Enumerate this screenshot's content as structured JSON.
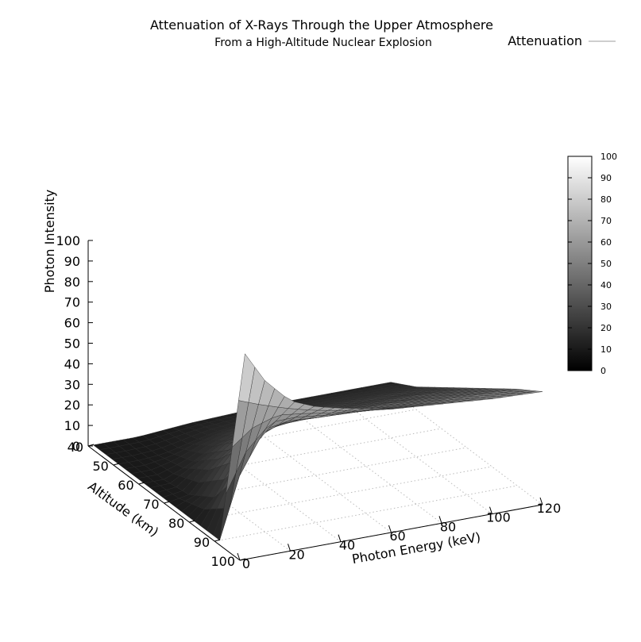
{
  "chart_data": {
    "type": "surface3d",
    "title": "Attenuation of X-Rays Through the Upper Atmosphere",
    "subtitle": "From a High-Altitude Nuclear Explosion",
    "legend": {
      "label": "Attenuation",
      "placement": "top-right",
      "line_color": "#b0b0b0"
    },
    "xlabel": "Photon Energy (keV)",
    "ylabel": "Altitude (km)",
    "zlabel": "Photon Intensity",
    "xlim": [
      0,
      120
    ],
    "ylim": [
      40,
      100
    ],
    "zlim": [
      0,
      100
    ],
    "x_ticks": [
      "0",
      "20",
      "40",
      "60",
      "80",
      "100",
      "120"
    ],
    "y_ticks": [
      "40",
      "50",
      "60",
      "70",
      "80",
      "90",
      "100"
    ],
    "z_ticks": [
      "0",
      "10",
      "20",
      "30",
      "40",
      "50",
      "60",
      "70",
      "80",
      "90",
      "100"
    ],
    "colorbar": {
      "ticks": [
        "0",
        "10",
        "20",
        "30",
        "40",
        "50",
        "60",
        "70",
        "80",
        "90",
        "100"
      ],
      "colormap": "grayscale"
    },
    "grid": true,
    "energy_keV": [
      2,
      10,
      20,
      30,
      40,
      60,
      80,
      100,
      120
    ],
    "series": [
      {
        "altitude_km": 100,
        "intensity": [
          100,
          85,
          73,
          68,
          65,
          60,
          58,
          56,
          55
        ]
      },
      {
        "altitude_km": 90,
        "intensity": [
          0,
          30,
          50,
          52,
          51,
          50,
          49,
          48,
          47
        ]
      },
      {
        "altitude_km": 80,
        "intensity": [
          0,
          10,
          30,
          38,
          40,
          40,
          40,
          39,
          38
        ]
      },
      {
        "altitude_km": 70,
        "intensity": [
          0,
          2,
          15,
          24,
          28,
          30,
          30,
          30,
          29
        ]
      },
      {
        "altitude_km": 60,
        "intensity": [
          0,
          0,
          5,
          12,
          16,
          19,
          20,
          20,
          20
        ]
      },
      {
        "altitude_km": 50,
        "intensity": [
          0,
          0,
          1,
          4,
          7,
          10,
          11,
          11,
          11
        ]
      },
      {
        "altitude_km": 40,
        "intensity": [
          0,
          0,
          0,
          1,
          2,
          3,
          4,
          4,
          4
        ]
      }
    ]
  }
}
